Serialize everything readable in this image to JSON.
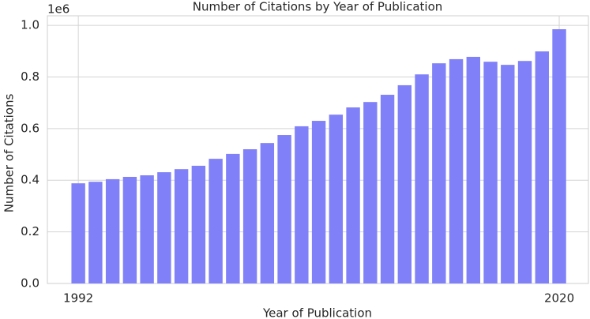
{
  "chart_data": {
    "type": "bar",
    "title": "Number of Citations by Year of Publication",
    "x_label": "Year of Publication",
    "y_label": "Number of Citations",
    "y_offset_label": "1e6",
    "x": [
      1992,
      1993,
      1994,
      1995,
      1996,
      1997,
      1998,
      1999,
      2000,
      2001,
      2002,
      2003,
      2004,
      2005,
      2006,
      2007,
      2008,
      2009,
      2010,
      2011,
      2012,
      2013,
      2014,
      2015,
      2016,
      2017,
      2018,
      2019,
      2020
    ],
    "values": [
      0.388,
      0.394,
      0.404,
      0.413,
      0.419,
      0.431,
      0.443,
      0.456,
      0.483,
      0.502,
      0.52,
      0.544,
      0.575,
      0.609,
      0.63,
      0.654,
      0.682,
      0.703,
      0.731,
      0.768,
      0.81,
      0.853,
      0.869,
      0.878,
      0.859,
      0.847,
      0.862,
      0.899,
      0.985
    ],
    "color": "#8080f8",
    "xlim": [
      1990.2,
      2021.7
    ],
    "xticks": [
      1992,
      2020
    ],
    "ylim": [
      0,
      1.037
    ],
    "yticks": [
      {
        "value": 0,
        "label": "0.0"
      },
      {
        "value": 0.2,
        "label": "0.2"
      },
      {
        "value": 0.4,
        "label": "0.4"
      },
      {
        "value": 0.6,
        "label": "0.6"
      },
      {
        "value": 0.8,
        "label": "0.8"
      },
      {
        "value": 1.0,
        "label": "1.0"
      }
    ],
    "grid": true
  }
}
